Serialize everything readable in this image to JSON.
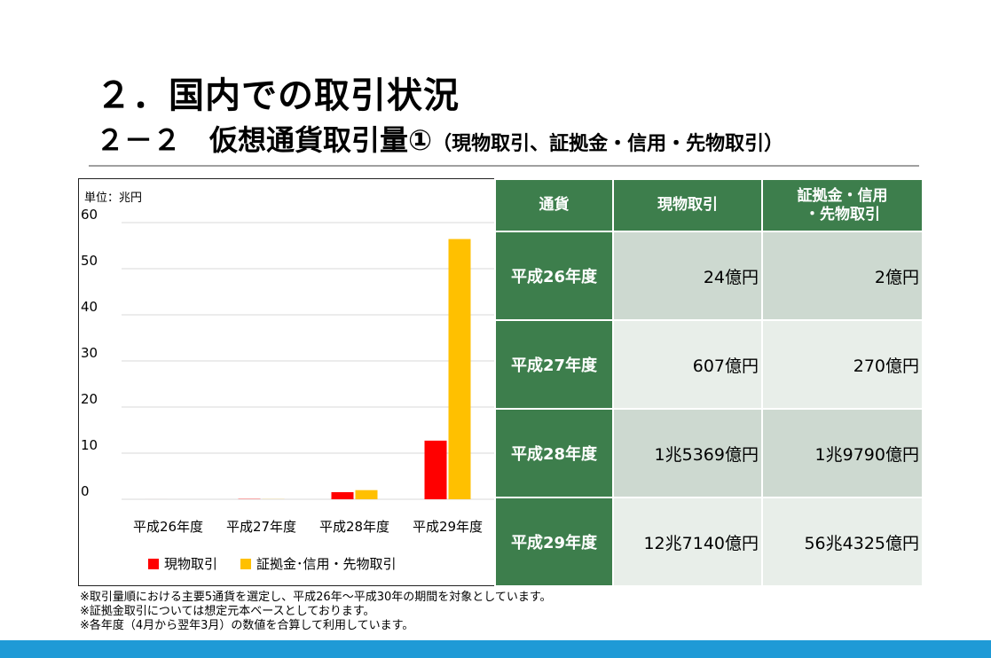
{
  "title": {
    "main": "２．国内での取引状況",
    "sub": "２－２　仮想通貨取引量①",
    "sub_paren": "（現物取引、証拠金・信用・先物取引）"
  },
  "chart_data": {
    "type": "bar",
    "unit_label": "単位：兆円",
    "categories": [
      "平成26年度",
      "平成27年度",
      "平成28年度",
      "平成29年度"
    ],
    "series": [
      {
        "name": "現物取引",
        "values": [
          0.0024,
          0.0607,
          1.5369,
          12.714
        ],
        "color": "#ff0000"
      },
      {
        "name": "証拠金･信用・先物取引",
        "values": [
          0.0002,
          0.027,
          1.979,
          56.4325
        ],
        "color": "#ffc000"
      }
    ],
    "yticks": [
      0,
      10,
      20,
      30,
      40,
      50,
      60
    ],
    "ylim": [
      0,
      60
    ],
    "grid": true,
    "legend_position": "bottom"
  },
  "table": {
    "headers": [
      "通貨",
      "現物取引",
      "証拠金・信用\n・先物取引"
    ],
    "rows": [
      {
        "year": "平成26年度",
        "spot": "24億円",
        "margin": "2億円"
      },
      {
        "year": "平成27年度",
        "spot": "607億円",
        "margin": "270億円"
      },
      {
        "year": "平成28年度",
        "spot": "1兆5369億円",
        "margin": "1兆9790億円"
      },
      {
        "year": "平成29年度",
        "spot": "12兆7140億円",
        "margin": "56兆4325億円"
      }
    ]
  },
  "notes": [
    "※取引量順における主要5通貨を選定し、平成26年～平成30年の期間を対象としています。",
    "※証拠金取引については想定元本ベースとしております。",
    "※各年度（4月から翌年3月）の数値を合算して利用しています。"
  ],
  "colors": {
    "header_green": "#3d7e4c",
    "bottom_bar": "#1f9ad6"
  }
}
